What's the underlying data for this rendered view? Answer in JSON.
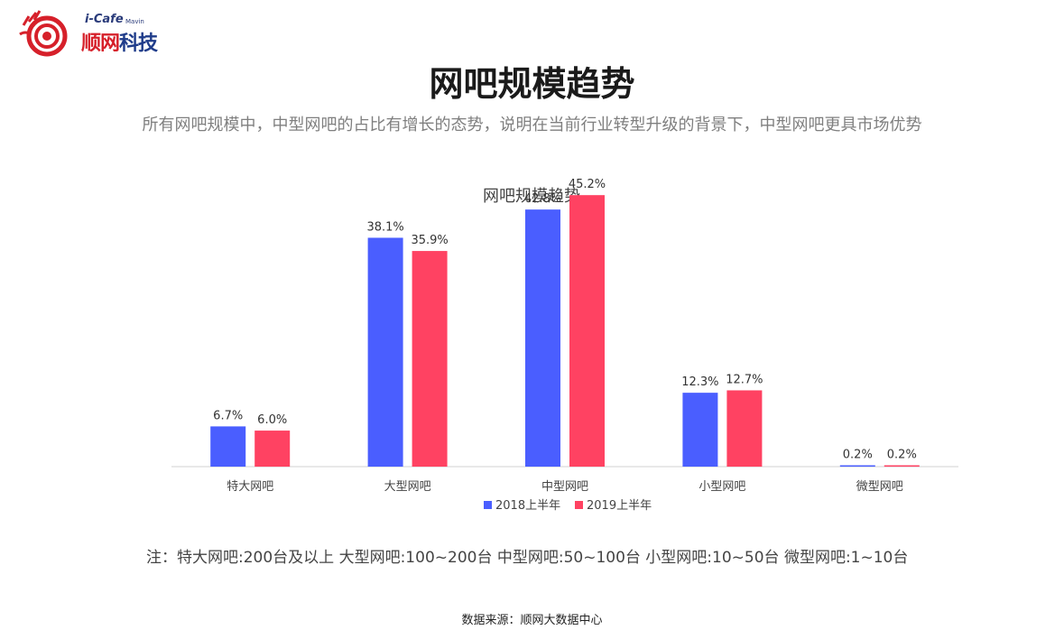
{
  "logo": {
    "brand_small": "i-Cafe",
    "brand_tag": "Mavin",
    "brand_cn_1": "顺网",
    "brand_cn_2": "科技"
  },
  "header": {
    "title": "网吧规模趋势",
    "subtitle": "所有网吧规模中，中型网吧的占比有增长的态势，说明在当前行业转型升级的背景下，中型网吧更具市场优势"
  },
  "chart_data": {
    "type": "bar",
    "title": "网吧规模趋势",
    "categories": [
      "特大网吧",
      "大型网吧",
      "中型网吧",
      "小型网吧",
      "微型网吧"
    ],
    "series": [
      {
        "name": "2018上半年",
        "values": [
          6.7,
          38.1,
          42.8,
          12.3,
          0.2
        ],
        "color": "#4a5eff"
      },
      {
        "name": "2019上半年",
        "values": [
          6.0,
          35.9,
          45.2,
          12.7,
          0.2
        ],
        "color": "#ff4262"
      }
    ],
    "value_suffix": "%",
    "ylim": [
      0,
      50
    ],
    "grid": false,
    "legend": "bottom"
  },
  "footer": {
    "note": "注：特大网吧:200台及以上   大型网吧:100~200台   中型网吧:50~100台   小型网吧:10~50台   微型网吧:1~10台",
    "source": "数据来源：顺网大数据中心"
  }
}
